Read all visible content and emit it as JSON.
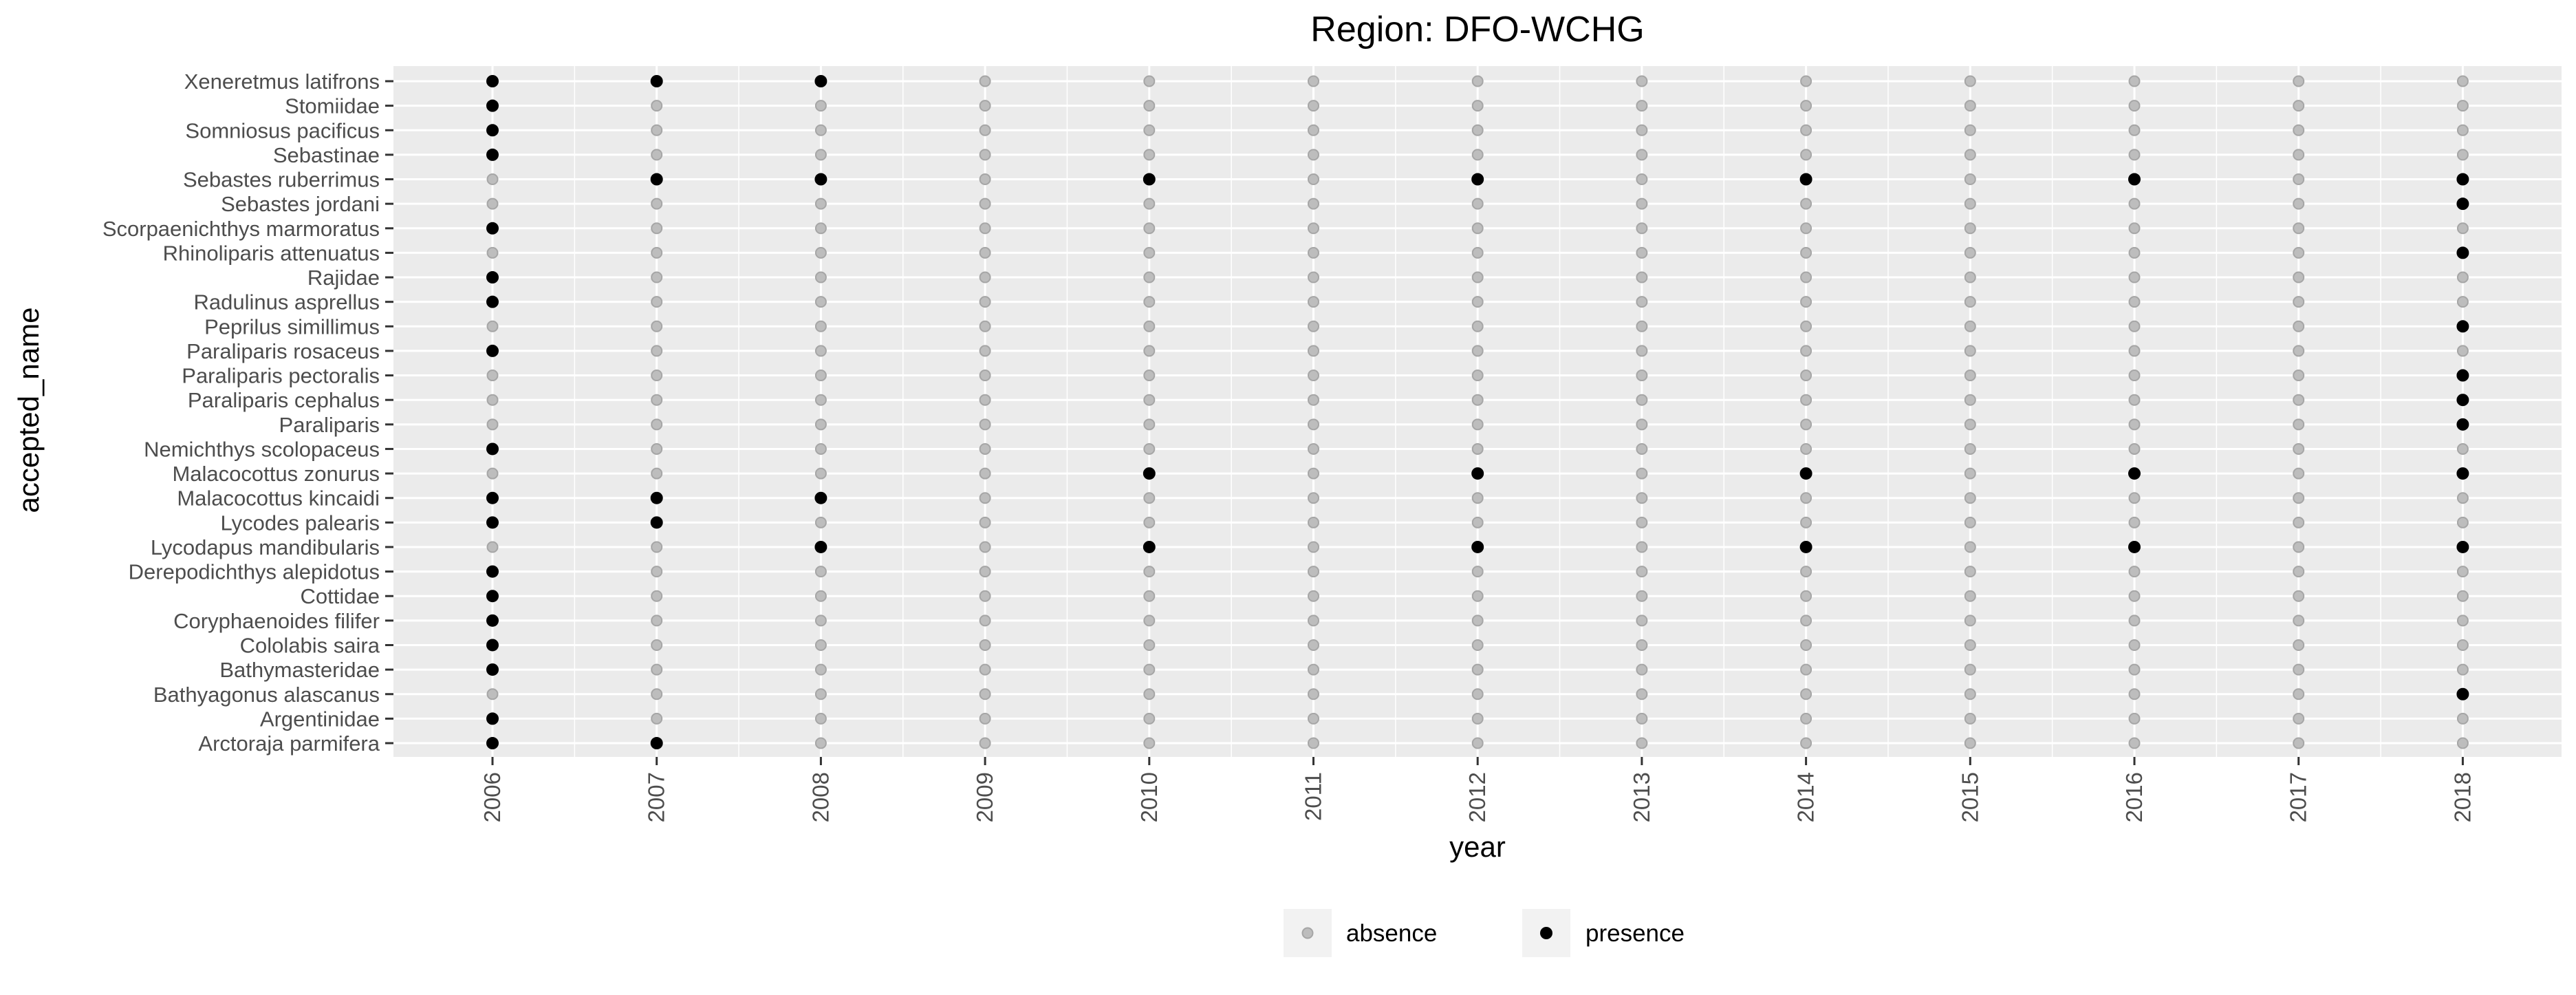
{
  "chart_data": {
    "type": "scatter",
    "title": "Region: DFO-WCHG",
    "xlabel": "year",
    "ylabel": "accepted_name",
    "grid": true,
    "legend_placement": "bottom",
    "colors": {
      "panel_background": "#ebebeb",
      "grid": "#ffffff",
      "presence": "#000000",
      "absence": "#bdbdbd",
      "absence_stroke": "#a6a6a6",
      "legend_key_background": "#f2f2f2",
      "axis_text": "#4d4d4d",
      "title_text": "#000000"
    },
    "x": [
      "2006",
      "2007",
      "2008",
      "2009",
      "2010",
      "2011",
      "2012",
      "2013",
      "2014",
      "2015",
      "2016",
      "2017",
      "2018"
    ],
    "categories": [
      "Xeneretmus latifrons",
      "Stomiidae",
      "Somniosus pacificus",
      "Sebastinae",
      "Sebastes ruberrimus",
      "Sebastes jordani",
      "Scorpaenichthys marmoratus",
      "Rhinoliparis attenuatus",
      "Rajidae",
      "Radulinus asprellus",
      "Peprilus simillimus",
      "Paraliparis rosaceus",
      "Paraliparis pectoralis",
      "Paraliparis cephalus",
      "Paraliparis",
      "Nemichthys scolopaceus",
      "Malacocottus zonurus",
      "Malacocottus kincaidi",
      "Lycodes palearis",
      "Lycodapus mandibularis",
      "Derepodichthys alepidotus",
      "Cottidae",
      "Coryphaenoides filifer",
      "Cololabis saira",
      "Bathymasteridae",
      "Bathyagonus alascanus",
      "Argentinidae",
      "Arctoraja parmifera"
    ],
    "series": [
      {
        "name": "presence",
        "points": [
          [
            "Xeneretmus latifrons",
            "2006"
          ],
          [
            "Xeneretmus latifrons",
            "2007"
          ],
          [
            "Xeneretmus latifrons",
            "2008"
          ],
          [
            "Stomiidae",
            "2006"
          ],
          [
            "Somniosus pacificus",
            "2006"
          ],
          [
            "Sebastinae",
            "2006"
          ],
          [
            "Sebastes ruberrimus",
            "2007"
          ],
          [
            "Sebastes ruberrimus",
            "2008"
          ],
          [
            "Sebastes ruberrimus",
            "2010"
          ],
          [
            "Sebastes ruberrimus",
            "2012"
          ],
          [
            "Sebastes ruberrimus",
            "2014"
          ],
          [
            "Sebastes ruberrimus",
            "2016"
          ],
          [
            "Sebastes ruberrimus",
            "2018"
          ],
          [
            "Sebastes jordani",
            "2018"
          ],
          [
            "Scorpaenichthys marmoratus",
            "2006"
          ],
          [
            "Rhinoliparis attenuatus",
            "2018"
          ],
          [
            "Rajidae",
            "2006"
          ],
          [
            "Radulinus asprellus",
            "2006"
          ],
          [
            "Peprilus simillimus",
            "2018"
          ],
          [
            "Paraliparis rosaceus",
            "2006"
          ],
          [
            "Paraliparis pectoralis",
            "2018"
          ],
          [
            "Paraliparis cephalus",
            "2018"
          ],
          [
            "Paraliparis",
            "2018"
          ],
          [
            "Nemichthys scolopaceus",
            "2006"
          ],
          [
            "Malacocottus zonurus",
            "2010"
          ],
          [
            "Malacocottus zonurus",
            "2012"
          ],
          [
            "Malacocottus zonurus",
            "2014"
          ],
          [
            "Malacocottus zonurus",
            "2016"
          ],
          [
            "Malacocottus zonurus",
            "2018"
          ],
          [
            "Malacocottus kincaidi",
            "2006"
          ],
          [
            "Malacocottus kincaidi",
            "2007"
          ],
          [
            "Malacocottus kincaidi",
            "2008"
          ],
          [
            "Lycodes palearis",
            "2006"
          ],
          [
            "Lycodes palearis",
            "2007"
          ],
          [
            "Lycodapus mandibularis",
            "2008"
          ],
          [
            "Lycodapus mandibularis",
            "2010"
          ],
          [
            "Lycodapus mandibularis",
            "2012"
          ],
          [
            "Lycodapus mandibularis",
            "2014"
          ],
          [
            "Lycodapus mandibularis",
            "2016"
          ],
          [
            "Lycodapus mandibularis",
            "2018"
          ],
          [
            "Derepodichthys alepidotus",
            "2006"
          ],
          [
            "Cottidae",
            "2006"
          ],
          [
            "Coryphaenoides filifer",
            "2006"
          ],
          [
            "Cololabis saira",
            "2006"
          ],
          [
            "Bathymasteridae",
            "2006"
          ],
          [
            "Bathyagonus alascanus",
            "2018"
          ],
          [
            "Argentinidae",
            "2006"
          ],
          [
            "Arctoraja parmifera",
            "2006"
          ],
          [
            "Arctoraja parmifera",
            "2007"
          ]
        ]
      },
      {
        "name": "absence",
        "rule": "every other year/name combination"
      }
    ],
    "legend": [
      {
        "label": "absence",
        "series": "absence"
      },
      {
        "label": "presence",
        "series": "presence"
      }
    ]
  }
}
